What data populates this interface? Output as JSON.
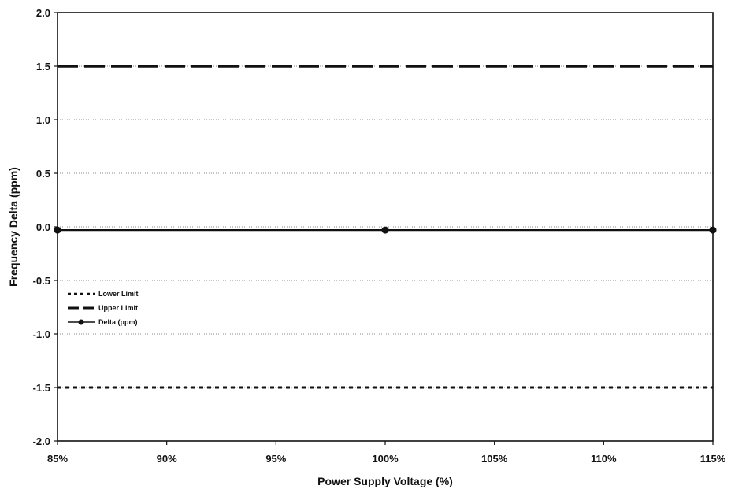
{
  "chart_data": {
    "type": "line",
    "title": "",
    "xlabel": "Power Supply Voltage (%)",
    "ylabel": "Frequency Delta (ppm)",
    "x": [
      85,
      100,
      115
    ],
    "x_tick_values": [
      85,
      90,
      95,
      100,
      105,
      110,
      115
    ],
    "x_tick_labels": [
      "85%",
      "90%",
      "95%",
      "100%",
      "105%",
      "110%",
      "115%"
    ],
    "xlim": [
      85,
      115
    ],
    "y_tick_values": [
      2.0,
      1.5,
      1.0,
      0.5,
      0.0,
      -0.5,
      -1.0,
      -1.5,
      -2.0
    ],
    "y_tick_labels": [
      "2.0",
      "1.5",
      "1.0",
      "0.5",
      "0.0",
      "-0.5",
      "-1.0",
      "-1.5",
      "-2.0"
    ],
    "ylim": [
      -2.0,
      2.0
    ],
    "grid": "horizontal dotted",
    "legend_position": "left",
    "series": [
      {
        "name": "Lower Limit",
        "style": "dotted",
        "color": "#111111",
        "values": [
          -1.5,
          -1.5,
          -1.5
        ]
      },
      {
        "name": "Upper Limit",
        "style": "dashed",
        "color": "#111111",
        "values": [
          1.5,
          1.5,
          1.5
        ]
      },
      {
        "name": "Delta (ppm)",
        "style": "solid-markers",
        "color": "#111111",
        "values": [
          -0.03,
          -0.03,
          -0.03
        ]
      }
    ]
  }
}
